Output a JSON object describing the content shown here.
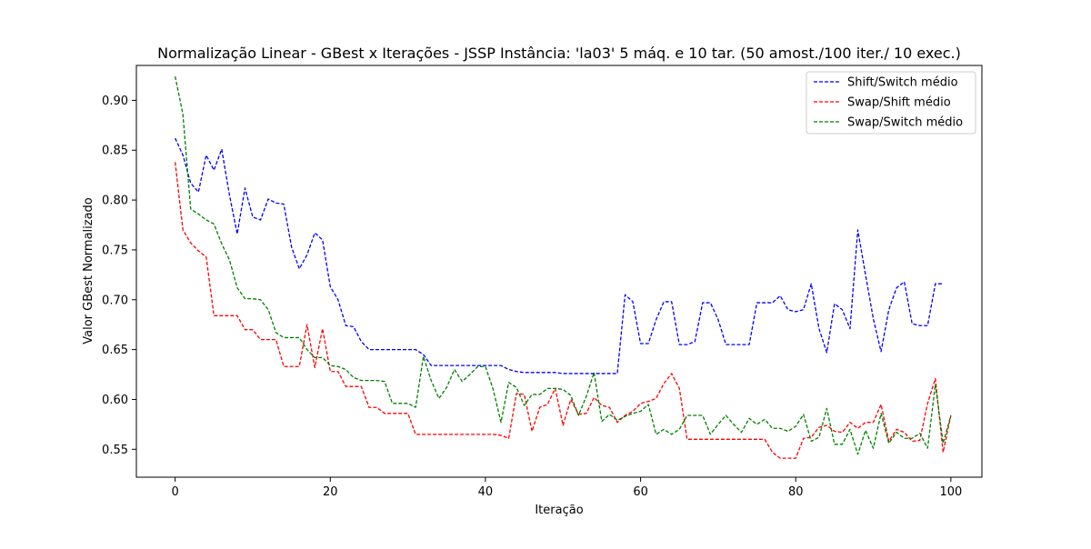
{
  "chart_data": {
    "type": "line",
    "title": "Normalização Linear - GBest x Iterações - JSSP Instância: 'la03' 5 máq. e 10 tar. (50 amost./100 iter./ 10 exec.)",
    "xlabel": "Iteração",
    "ylabel": "Valor GBest Normalizado",
    "xlim": [
      -5,
      104
    ],
    "ylim": [
      0.522,
      0.935
    ],
    "xticks": [
      0,
      20,
      40,
      60,
      80,
      100
    ],
    "yticks": [
      0.55,
      0.6,
      0.65,
      0.7,
      0.75,
      0.8,
      0.85,
      0.9
    ],
    "ytick_labels": [
      "0.55",
      "0.60",
      "0.65",
      "0.70",
      "0.75",
      "0.80",
      "0.85",
      "0.90"
    ],
    "grid": false,
    "legend_position": "upper right",
    "series": [
      {
        "name": "Shift/Switch médio",
        "color": "#0000ff",
        "style": "dashed",
        "values": [
          0.862,
          0.845,
          0.817,
          0.808,
          0.845,
          0.83,
          0.851,
          0.805,
          0.766,
          0.812,
          0.783,
          0.78,
          0.801,
          0.797,
          0.796,
          0.753,
          0.731,
          0.745,
          0.767,
          0.76,
          0.713,
          0.7,
          0.674,
          0.673,
          0.658,
          0.65,
          0.65,
          0.65,
          0.65,
          0.65,
          0.65,
          0.65,
          0.645,
          0.634,
          0.634,
          0.634,
          0.634,
          0.634,
          0.634,
          0.634,
          0.634,
          0.634,
          0.634,
          0.63,
          0.628,
          0.627,
          0.627,
          0.627,
          0.627,
          0.627,
          0.626,
          0.626,
          0.626,
          0.626,
          0.626,
          0.626,
          0.626,
          0.626,
          0.705,
          0.698,
          0.656,
          0.656,
          0.68,
          0.698,
          0.698,
          0.655,
          0.655,
          0.658,
          0.697,
          0.697,
          0.68,
          0.655,
          0.655,
          0.655,
          0.655,
          0.697,
          0.697,
          0.697,
          0.704,
          0.69,
          0.688,
          0.69,
          0.716,
          0.671,
          0.647,
          0.696,
          0.69,
          0.671,
          0.77,
          0.725,
          0.681,
          0.648,
          0.69,
          0.712,
          0.718,
          0.676,
          0.674,
          0.674,
          0.716,
          0.716
        ]
      },
      {
        "name": "Swap/Shift médio",
        "color": "#ff0000",
        "style": "dashed",
        "values": [
          0.838,
          0.77,
          0.757,
          0.749,
          0.743,
          0.684,
          0.684,
          0.684,
          0.684,
          0.67,
          0.67,
          0.66,
          0.66,
          0.66,
          0.633,
          0.633,
          0.633,
          0.675,
          0.632,
          0.671,
          0.628,
          0.628,
          0.613,
          0.613,
          0.613,
          0.592,
          0.592,
          0.586,
          0.586,
          0.586,
          0.586,
          0.565,
          0.565,
          0.565,
          0.565,
          0.565,
          0.565,
          0.565,
          0.565,
          0.565,
          0.565,
          0.565,
          0.564,
          0.561,
          0.606,
          0.605,
          0.568,
          0.592,
          0.595,
          0.611,
          0.574,
          0.6,
          0.585,
          0.586,
          0.602,
          0.594,
          0.592,
          0.577,
          0.584,
          0.588,
          0.596,
          0.598,
          0.601,
          0.616,
          0.626,
          0.611,
          0.56,
          0.56,
          0.56,
          0.56,
          0.56,
          0.56,
          0.56,
          0.56,
          0.56,
          0.56,
          0.56,
          0.547,
          0.541,
          0.541,
          0.541,
          0.561,
          0.562,
          0.572,
          0.574,
          0.568,
          0.567,
          0.577,
          0.571,
          0.577,
          0.577,
          0.595,
          0.558,
          0.57,
          0.567,
          0.558,
          0.559,
          0.596,
          0.621,
          0.547,
          0.584
        ]
      },
      {
        "name": "Swap/Switch médio",
        "color": "#008000",
        "style": "dashed",
        "values": [
          0.924,
          0.886,
          0.791,
          0.786,
          0.78,
          0.776,
          0.756,
          0.74,
          0.712,
          0.701,
          0.701,
          0.7,
          0.69,
          0.667,
          0.662,
          0.662,
          0.662,
          0.65,
          0.642,
          0.642,
          0.634,
          0.633,
          0.63,
          0.622,
          0.619,
          0.619,
          0.619,
          0.618,
          0.596,
          0.596,
          0.596,
          0.592,
          0.643,
          0.619,
          0.601,
          0.612,
          0.63,
          0.618,
          0.625,
          0.633,
          0.633,
          0.61,
          0.577,
          0.617,
          0.612,
          0.594,
          0.605,
          0.605,
          0.611,
          0.611,
          0.61,
          0.604,
          0.584,
          0.603,
          0.627,
          0.578,
          0.585,
          0.579,
          0.583,
          0.586,
          0.588,
          0.595,
          0.565,
          0.57,
          0.565,
          0.57,
          0.584,
          0.584,
          0.584,
          0.565,
          0.575,
          0.584,
          0.575,
          0.567,
          0.581,
          0.575,
          0.58,
          0.571,
          0.571,
          0.568,
          0.573,
          0.585,
          0.558,
          0.562,
          0.591,
          0.555,
          0.555,
          0.57,
          0.545,
          0.569,
          0.551,
          0.586,
          0.556,
          0.567,
          0.561,
          0.561,
          0.566,
          0.551,
          0.615,
          0.556,
          0.584
        ]
      }
    ]
  }
}
